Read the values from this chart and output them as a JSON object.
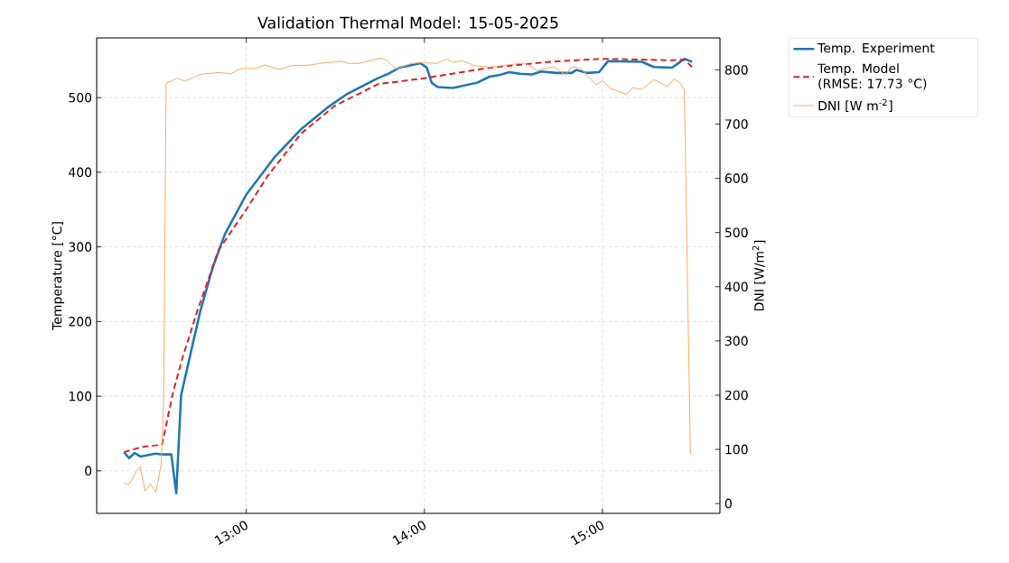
{
  "chart_data": {
    "type": "line",
    "title": "Validation Thermal Model: 15-05-2025",
    "ylabel": "Temperature [°C]",
    "y2label": "DNI [W/m$^{2}$]",
    "xlim": [
      12.16,
      15.66
    ],
    "xticks": [
      {
        "value": 13,
        "label": "13:00"
      },
      {
        "value": 14,
        "label": "14:00"
      },
      {
        "value": 15,
        "label": "15:00"
      }
    ],
    "ylim": [
      -57,
      580
    ],
    "yticks": [
      0,
      100,
      200,
      300,
      400,
      500
    ],
    "y2lim": [
      -18,
      859
    ],
    "y2ticks": [
      0,
      100,
      200,
      300,
      400,
      500,
      600,
      700,
      800
    ],
    "grid": true,
    "legend": "top right",
    "series": [
      {
        "name": "Temp. Experiment",
        "color": "#1f77b4",
        "line_style": "solid",
        "x": [
          12.313,
          12.342,
          12.373,
          12.407,
          12.49,
          12.527,
          12.579,
          12.607,
          12.634,
          12.691,
          12.742,
          12.811,
          12.88,
          13.0,
          13.155,
          13.309,
          13.464,
          13.567,
          13.739,
          13.799,
          13.859,
          13.979,
          14.014,
          14.041,
          14.075,
          14.161,
          14.297,
          14.366,
          14.417,
          14.477,
          14.537,
          14.605,
          14.656,
          14.742,
          14.827,
          14.853,
          14.913,
          14.981,
          15.032,
          15.221,
          15.289,
          15.391,
          15.426,
          15.46,
          15.503
        ],
        "values": [
          25,
          17,
          24,
          19,
          23,
          22,
          22,
          -30,
          101,
          161,
          214,
          272,
          317,
          370,
          419,
          458,
          488,
          505,
          526,
          532,
          540,
          546,
          540,
          520,
          514,
          513,
          520,
          528,
          530,
          534,
          532,
          531,
          535,
          533,
          533,
          537,
          533,
          534,
          549,
          548,
          541,
          540,
          546,
          552,
          548
        ]
      },
      {
        "name": "Temp. Model\n(RMSE: 17.73 °C)",
        "color": "#d62728",
        "line_style": "dashed",
        "x": [
          12.313,
          12.416,
          12.527,
          12.588,
          12.639,
          12.725,
          12.845,
          13.0,
          13.12,
          13.309,
          13.498,
          13.739,
          14.0,
          14.366,
          14.708,
          15.0,
          15.391,
          15.46,
          15.503
        ],
        "values": [
          25,
          32,
          35,
          104,
          149,
          214,
          296,
          350,
          395,
          452,
          489,
          518,
          526,
          540,
          548,
          552,
          550,
          551,
          541
        ]
      },
      {
        "name": "DNI [W m$^{-2}$]",
        "color": "#ffaa60",
        "line_style": "solid",
        "axis": "y2",
        "x": [
          12.313,
          12.342,
          12.381,
          12.403,
          12.432,
          12.462,
          12.493,
          12.522,
          12.536,
          12.55,
          12.613,
          12.656,
          12.742,
          12.845,
          12.914,
          12.966,
          13.052,
          13.103,
          13.189,
          13.258,
          13.361,
          13.412,
          13.533,
          13.567,
          13.636,
          13.756,
          13.782,
          13.842,
          13.928,
          13.979,
          14.075,
          14.126,
          14.161,
          14.212,
          14.28,
          14.366,
          14.537,
          14.571,
          14.631,
          14.725,
          14.793,
          14.827,
          14.879,
          14.964,
          14.998,
          15.05,
          15.135,
          15.169,
          15.221,
          15.289,
          15.366,
          15.4,
          15.434,
          15.46,
          15.494,
          15.503
        ],
        "values": [
          38,
          35,
          59,
          68,
          23,
          36,
          21,
          73,
          186,
          775,
          785,
          779,
          792,
          795,
          793,
          802,
          803,
          809,
          801,
          808,
          809,
          812,
          816,
          812,
          812,
          822,
          819,
          802,
          812,
          813,
          812,
          820,
          814,
          817,
          808,
          805,
          812,
          812,
          799,
          806,
          791,
          806,
          803,
          772,
          780,
          765,
          755,
          767,
          764,
          782,
          769,
          783,
          777,
          763,
          93,
          91
        ]
      }
    ]
  }
}
